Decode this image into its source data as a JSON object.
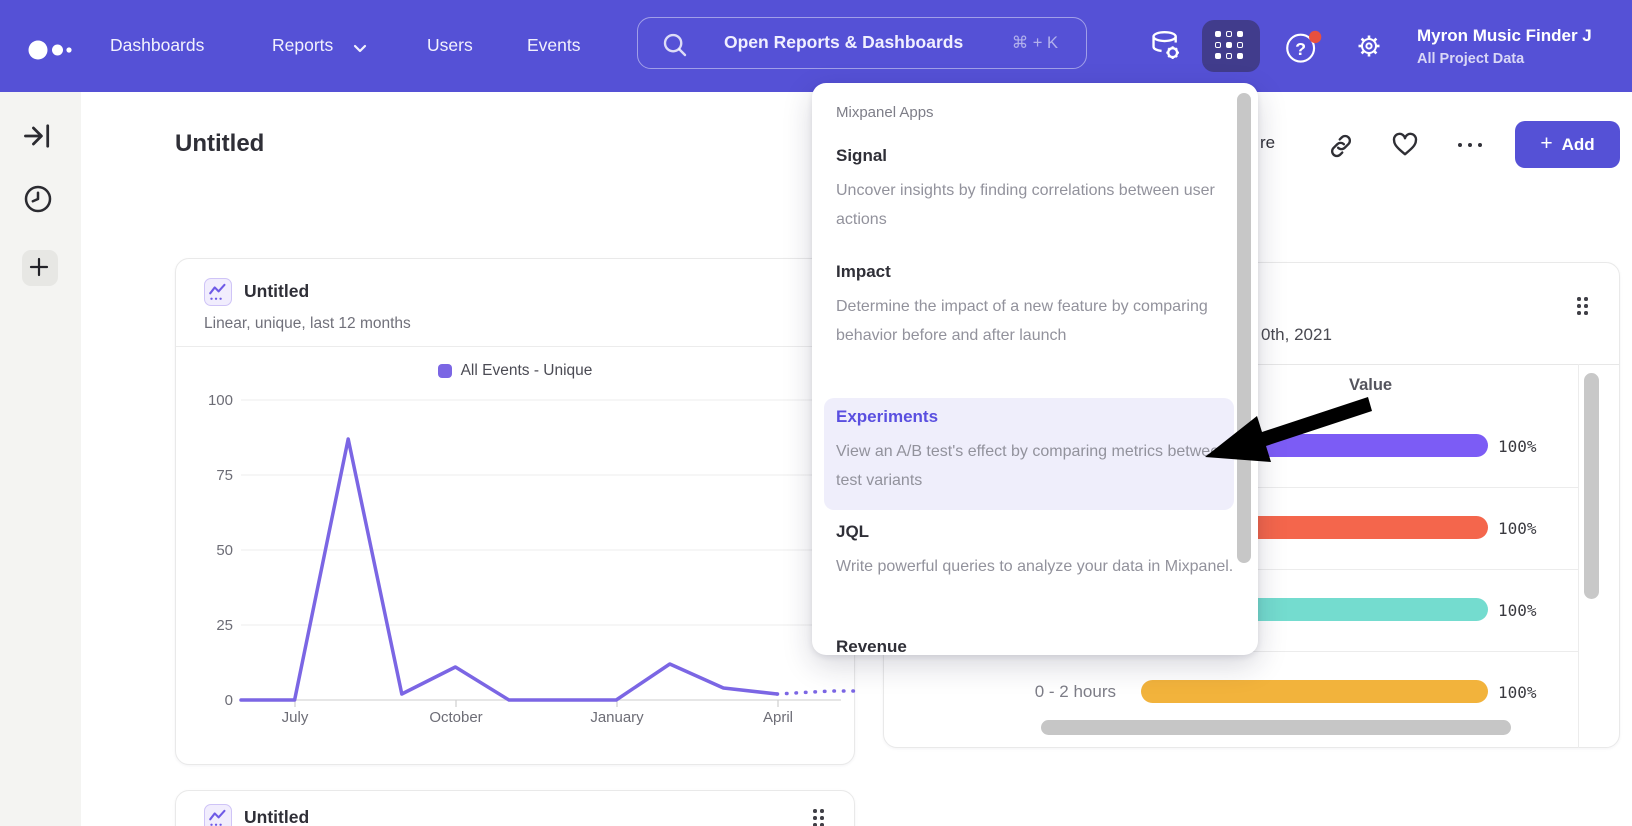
{
  "navbar": {
    "items": [
      {
        "label": "Dashboards"
      },
      {
        "label": "Reports",
        "has_chevron": true
      },
      {
        "label": "Users"
      },
      {
        "label": "Events"
      }
    ],
    "search": {
      "placeholder": "Open Reports & Dashboards",
      "shortcut": "⌘ + K"
    },
    "help_glyph": "?",
    "user": {
      "name": "Myron Music Finder J",
      "project": "All Project Data"
    },
    "colors": {
      "bar": "#5551d6",
      "active_tile": "#413c8c",
      "notification_dot": "#e8503f"
    }
  },
  "page": {
    "title": "Untitled"
  },
  "actions": {
    "share_fragment": "re",
    "add": {
      "icon": "+",
      "label": "Add"
    }
  },
  "apps_menu": {
    "header": "Mixpanel Apps",
    "items": [
      {
        "name": "Signal",
        "description": "Uncover insights by finding correlations between user actions",
        "highlighted": false
      },
      {
        "name": "Impact",
        "description": "Determine the impact of a new feature by comparing behavior before and after launch",
        "highlighted": false
      },
      {
        "name": "Experiments",
        "description": "View an A/B test's effect by comparing metrics between test variants",
        "highlighted": true
      },
      {
        "name": "JQL",
        "description": "Write powerful queries to analyze your data in Mixpanel.",
        "highlighted": false
      }
    ],
    "partial_item": "Revenue",
    "highlight_bg": "#efeefb",
    "highlight_text_color": "#5a4fe0"
  },
  "left_card": {
    "title": "Untitled",
    "subtitle": "Linear, unique, last 12 months"
  },
  "right_card": {
    "date_fragment": "0th, 2021",
    "column_header": "Value"
  },
  "bottom_card": {
    "title": "Untitled"
  },
  "chart_data": [
    {
      "type": "line",
      "title": "Untitled",
      "subtitle": "Linear, unique, last 12 months",
      "legend": "All Events - Unique",
      "color": "#7b66e4",
      "x_tick_labels": [
        "July",
        "October",
        "January",
        "April"
      ],
      "y_ticks": [
        0,
        25,
        50,
        75,
        100
      ],
      "ylim": [
        0,
        100
      ],
      "values": [
        0,
        0,
        87,
        2,
        11,
        0,
        0,
        0,
        12,
        4,
        2,
        3
      ],
      "dashed_tail": true,
      "grid": true,
      "legend_position": "top-center"
    },
    {
      "type": "bar",
      "orientation": "horizontal",
      "title_fragment": "0th, 2021",
      "column_header": "Value",
      "rows": [
        {
          "label": "",
          "value_pct": 100,
          "value_label": "100%",
          "color": "#7c5cf5"
        },
        {
          "label": "",
          "value_pct": 100,
          "value_label": "100%",
          "color": "#f4664c"
        },
        {
          "label": "",
          "value_pct": 100,
          "value_label": "100%",
          "color": "#74dccf"
        },
        {
          "label": "0 - 2 hours",
          "value_pct": 100,
          "value_label": "100%",
          "color": "#f2b33c"
        }
      ]
    }
  ]
}
